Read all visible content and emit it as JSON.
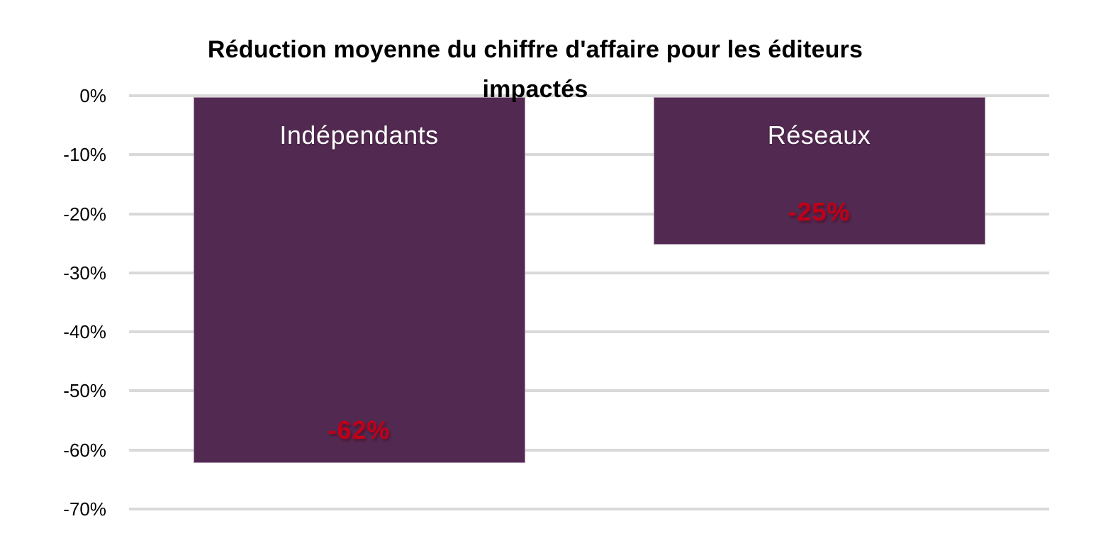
{
  "page": {
    "background": "#FFFFFF"
  },
  "chart_data": {
    "type": "bar",
    "title": "Réduction moyenne du chiffre d'affaire pour les éditeurs impactés",
    "title_lines": [
      "Réduction moyenne du chiffre d'affaire pour les éditeurs",
      "impactés"
    ],
    "categories": [
      "Indépendants",
      "Réseaux"
    ],
    "values": [
      -62,
      -25
    ],
    "data_labels": [
      "-62%",
      "-25%"
    ],
    "category_label_position": "inside-top",
    "data_label_position": "inside-bottom",
    "y_axis": {
      "ticks": [
        "0%",
        "-10%",
        "-20%",
        "-30%",
        "-40%",
        "-50%",
        "-60%",
        "-70%"
      ],
      "max": 0,
      "min": -70,
      "step": -10
    },
    "x_axis": {
      "tick_labels_visible": false
    },
    "grid": {
      "horizontal": true,
      "vertical": false,
      "color": "#D9D9D9"
    },
    "legend": {
      "visible": false
    },
    "colors": {
      "bar": "#522950",
      "data_label": "#C00018",
      "category_label": "#FFFFFF",
      "title": "#000000",
      "axis_text": "#000000",
      "background": "#FFFFFF"
    }
  }
}
